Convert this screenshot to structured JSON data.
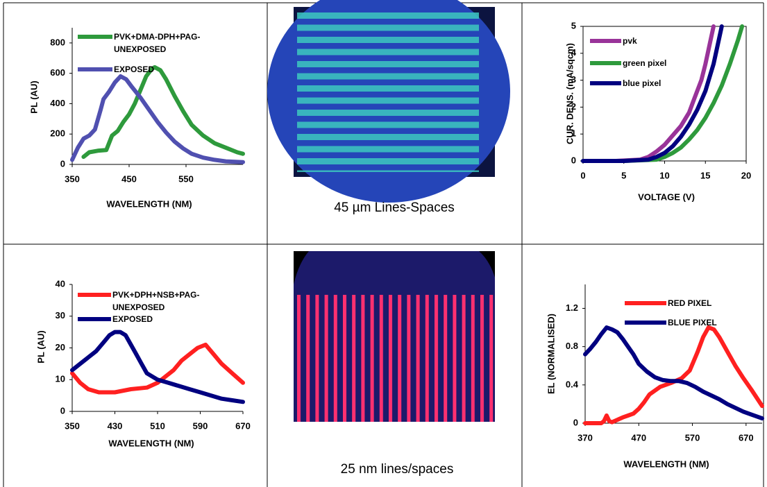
{
  "chart_data": [
    {
      "type": "line",
      "xlabel": "WAVELENGTH (NM)",
      "ylabel": "PL (AU)",
      "xlim": [
        350,
        650
      ],
      "xticks": [
        350,
        450,
        550
      ],
      "ylim": [
        0,
        900
      ],
      "yticks": [
        0,
        200,
        400,
        600,
        800
      ],
      "series": [
        {
          "name": "PVK+DMA-DPH+PAG-UNEXPOSED",
          "color": "#2e9a3c",
          "x": [
            370,
            380,
            395,
            410,
            420,
            430,
            440,
            450,
            460,
            470,
            480,
            490,
            495,
            505,
            515,
            530,
            545,
            560,
            580,
            600,
            620,
            640,
            650
          ],
          "values": [
            50,
            80,
            90,
            95,
            190,
            220,
            280,
            330,
            400,
            490,
            580,
            630,
            640,
            620,
            560,
            450,
            350,
            260,
            190,
            140,
            110,
            80,
            70
          ]
        },
        {
          "name": "EXPOSED",
          "color": "#5050b0",
          "x": [
            350,
            360,
            370,
            380,
            390,
            400,
            405,
            415,
            425,
            435,
            445,
            455,
            470,
            485,
            500,
            515,
            530,
            545,
            560,
            580,
            600,
            620,
            650
          ],
          "values": [
            30,
            110,
            170,
            190,
            230,
            360,
            430,
            480,
            540,
            580,
            560,
            510,
            440,
            360,
            280,
            210,
            150,
            105,
            70,
            45,
            30,
            20,
            15
          ]
        }
      ]
    },
    {
      "type": "line",
      "xlabel": "VOLTAGE (V)",
      "ylabel": "CUR. DENS. (mA/sqcm)",
      "xlim": [
        0,
        20
      ],
      "xticks": [
        0,
        5,
        10,
        15,
        20
      ],
      "ylim": [
        0,
        5
      ],
      "yticks": [
        0,
        1,
        2,
        3,
        4,
        5
      ],
      "series": [
        {
          "name": "pvk",
          "color": "#993399",
          "x": [
            0,
            4,
            7,
            8,
            9,
            10,
            11,
            12,
            13,
            13.5,
            14,
            14.5,
            15,
            15.5,
            16
          ],
          "values": [
            0,
            0,
            0.05,
            0.15,
            0.35,
            0.6,
            0.95,
            1.3,
            1.8,
            2.2,
            2.6,
            3.0,
            3.6,
            4.3,
            5
          ]
        },
        {
          "name": "green pixel",
          "color": "#2e9a3c",
          "x": [
            0,
            5,
            9,
            10,
            11,
            12,
            13,
            14,
            15,
            16,
            17,
            18,
            19,
            19.5
          ],
          "values": [
            0,
            0,
            0.05,
            0.15,
            0.3,
            0.5,
            0.8,
            1.15,
            1.6,
            2.15,
            2.8,
            3.6,
            4.5,
            5
          ]
        },
        {
          "name": "blue pixel",
          "color": "#000080",
          "x": [
            0,
            5,
            8,
            9,
            10,
            11,
            12,
            13,
            14,
            15,
            15.5,
            16,
            16.5,
            17
          ],
          "values": [
            0,
            0,
            0.05,
            0.15,
            0.3,
            0.55,
            0.9,
            1.35,
            1.9,
            2.6,
            3.1,
            3.6,
            4.3,
            5
          ]
        }
      ]
    },
    {
      "type": "line",
      "xlabel": "WAVELENGTH (NM)",
      "ylabel": "PL (AU)",
      "xlim": [
        350,
        670
      ],
      "xticks": [
        350,
        430,
        510,
        590,
        670
      ],
      "ylim": [
        0,
        40
      ],
      "yticks": [
        0,
        10,
        20,
        30,
        40
      ],
      "series": [
        {
          "name": "PVK+DPH+NSB+PAG-UNEXPOSED",
          "color": "#ff2020",
          "x": [
            350,
            365,
            380,
            400,
            430,
            460,
            490,
            510,
            525,
            540,
            555,
            570,
            585,
            600,
            615,
            630,
            650,
            670
          ],
          "values": [
            12,
            9,
            7,
            6,
            6,
            7,
            7.5,
            9,
            11,
            13,
            16,
            18,
            20,
            21,
            18,
            15,
            12,
            9
          ]
        },
        {
          "name": "EXPOSED",
          "color": "#000080",
          "x": [
            350,
            365,
            380,
            395,
            410,
            420,
            430,
            440,
            450,
            460,
            470,
            480,
            490,
            510,
            530,
            550,
            570,
            590,
            610,
            630,
            650,
            670
          ],
          "values": [
            13,
            15,
            17,
            19,
            22,
            24,
            25,
            25,
            24,
            21,
            18,
            15,
            12,
            10,
            9,
            8,
            7,
            6,
            5,
            4,
            3.5,
            3
          ]
        }
      ]
    },
    {
      "type": "line",
      "xlabel": "WAVELENGTH (NM)",
      "ylabel": "EL (NORMALISED)",
      "xlim": [
        370,
        700
      ],
      "xticks": [
        370,
        470,
        570,
        670
      ],
      "ylim": [
        0,
        1.45
      ],
      "yticks": [
        0,
        0.4,
        0.8,
        1.2
      ],
      "series": [
        {
          "name": "RED PIXEL",
          "color": "#ff2020",
          "x": [
            370,
            400,
            405,
            410,
            415,
            420,
            440,
            450,
            460,
            470,
            480,
            490,
            510,
            530,
            550,
            565,
            580,
            590,
            600,
            610,
            620,
            635,
            650,
            665,
            680,
            700
          ],
          "values": [
            0,
            0,
            0.02,
            0.08,
            0.02,
            0.01,
            0.06,
            0.08,
            0.1,
            0.15,
            0.22,
            0.3,
            0.38,
            0.42,
            0.47,
            0.55,
            0.75,
            0.9,
            1.0,
            0.98,
            0.9,
            0.75,
            0.6,
            0.47,
            0.35,
            0.18
          ]
        },
        {
          "name": "BLUE PIXEL",
          "color": "#000080",
          "x": [
            370,
            380,
            390,
            400,
            410,
            420,
            430,
            440,
            450,
            460,
            470,
            485,
            500,
            515,
            530,
            545,
            560,
            575,
            590,
            605,
            620,
            635,
            650,
            665,
            680,
            700
          ],
          "values": [
            0.72,
            0.78,
            0.85,
            0.93,
            1.0,
            0.98,
            0.95,
            0.88,
            0.8,
            0.72,
            0.62,
            0.54,
            0.48,
            0.45,
            0.44,
            0.44,
            0.42,
            0.38,
            0.33,
            0.29,
            0.25,
            0.2,
            0.16,
            0.12,
            0.09,
            0.05
          ]
        }
      ]
    }
  ],
  "images": [
    {
      "caption": "45 µm Lines-Spaces"
    },
    {
      "caption": "25 nm lines/spaces"
    }
  ]
}
